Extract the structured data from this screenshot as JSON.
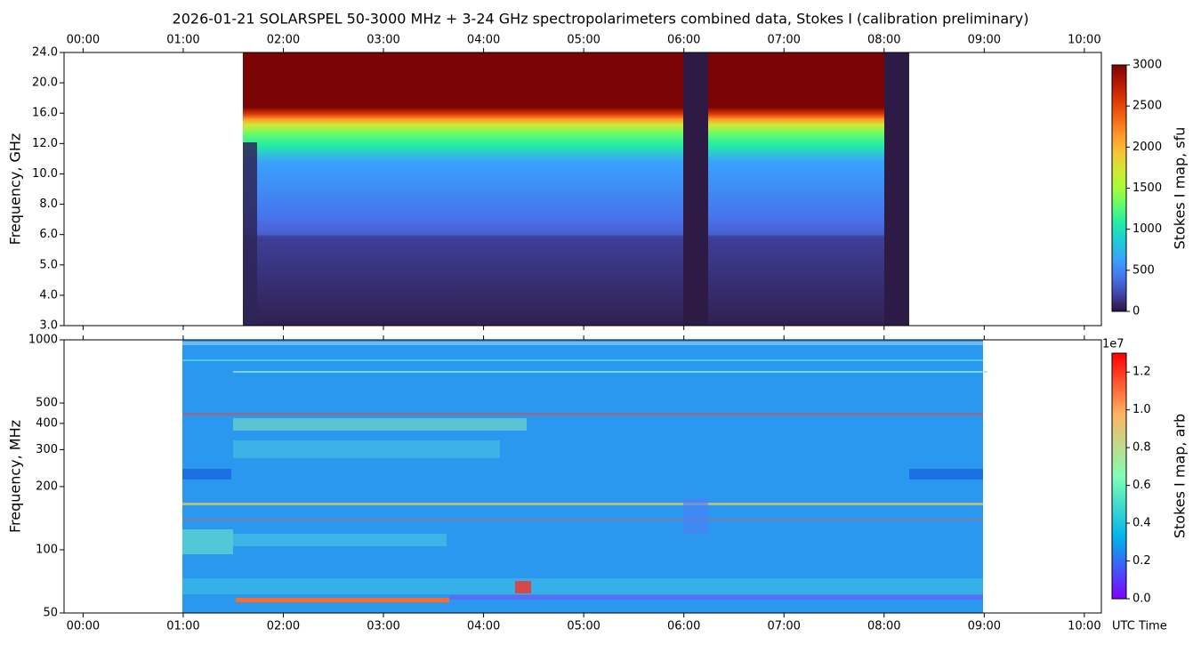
{
  "chart_data": [
    {
      "type": "spectrogram",
      "title": "2026-01-21  SOLARSPEL  50-3000 MHz  +  3-24 GHz  spectropolarimeters combined data,  Stokes I  (calibration preliminary)",
      "ylabel": "Frequency, GHz",
      "xlim": [
        -0.19,
        10.17
      ],
      "xticks": [
        {
          "value": 0,
          "label": "00:00"
        },
        {
          "value": 1,
          "label": "01:00"
        },
        {
          "value": 2,
          "label": "02:00"
        },
        {
          "value": 3,
          "label": "03:00"
        },
        {
          "value": 4,
          "label": "04:00"
        },
        {
          "value": 5,
          "label": "05:00"
        },
        {
          "value": 6,
          "label": "06:00"
        },
        {
          "value": 7,
          "label": "07:00"
        },
        {
          "value": 8,
          "label": "08:00"
        },
        {
          "value": 9,
          "label": "09:00"
        },
        {
          "value": 10,
          "label": "10:00"
        }
      ],
      "xtick_labels": "top",
      "ylim": [
        3,
        24
      ],
      "yscale": "tick-indexed",
      "yticks": [
        {
          "value": 3,
          "label": "3.0"
        },
        {
          "value": 4,
          "label": "4.0"
        },
        {
          "value": 5,
          "label": "5.0"
        },
        {
          "value": 6,
          "label": "6.0"
        },
        {
          "value": 8,
          "label": "8.0"
        },
        {
          "value": 10,
          "label": "10.0"
        },
        {
          "value": 12,
          "label": "12.0"
        },
        {
          "value": 16,
          "label": "16.0"
        },
        {
          "value": 20,
          "label": "20.0"
        },
        {
          "value": 24,
          "label": "24.0"
        }
      ],
      "colorbar": {
        "label": "Stokes I map, sfu",
        "colormap": "turbo",
        "clim": [
          0,
          3000
        ],
        "ticks": [
          0,
          500,
          1000,
          1500,
          2000,
          2500,
          3000
        ]
      }
    },
    {
      "type": "spectrogram",
      "ylabel": "Frequency, MHz",
      "xlabel": "UTC Time",
      "xlim": [
        -0.19,
        10.17
      ],
      "xticks": [
        {
          "value": 0,
          "label": "00:00"
        },
        {
          "value": 1,
          "label": "01:00"
        },
        {
          "value": 2,
          "label": "02:00"
        },
        {
          "value": 3,
          "label": "03:00"
        },
        {
          "value": 4,
          "label": "04:00"
        },
        {
          "value": 5,
          "label": "05:00"
        },
        {
          "value": 6,
          "label": "06:00"
        },
        {
          "value": 7,
          "label": "07:00"
        },
        {
          "value": 8,
          "label": "08:00"
        },
        {
          "value": 9,
          "label": "09:00"
        },
        {
          "value": 10,
          "label": "10:00"
        }
      ],
      "xtick_labels": "bottom",
      "ylim": [
        50,
        1000
      ],
      "yscale": "log",
      "yticks": [
        50,
        100,
        200,
        300,
        400,
        500,
        1000
      ],
      "colorbar": {
        "label": "Stokes I map, arb",
        "colormap": "rainbow",
        "offset_label": "1e7",
        "clim": [
          0,
          13000000
        ],
        "ticks": [
          {
            "value": 0,
            "label": "0.0"
          },
          {
            "value": 2000000,
            "label": "0.2"
          },
          {
            "value": 4000000,
            "label": "0.4"
          },
          {
            "value": 6000000,
            "label": "0.6"
          },
          {
            "value": 8000000,
            "label": "0.8"
          },
          {
            "value": 10000000,
            "label": "1.0"
          },
          {
            "value": 12000000,
            "label": "1.2"
          }
        ]
      }
    }
  ]
}
